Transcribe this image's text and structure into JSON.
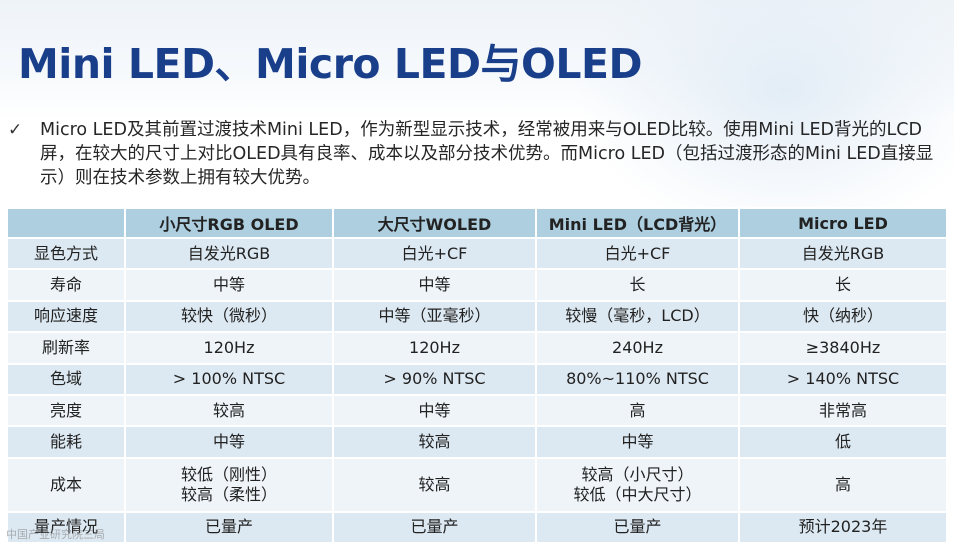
{
  "slide": {
    "title": "Mini LED、Micro LED与OLED",
    "bullet_mark": "✓",
    "bullet_text": "Micro LED及其前置过渡技术Mini LED，作为新型显示技术，经常被用来与OLED比较。使用Mini LED背光的LCD屏，在较大的尺寸上对比OLED具有良率、成本以及部分技术优势。而Micro LED（包括过渡形态的Mini LED直接显示）则在技术参数上拥有较大优势。"
  },
  "table": {
    "headers": [
      "",
      "小尺寸RGB OLED",
      "大尺寸WOLED",
      "Mini LED（LCD背光）",
      "Micro LED"
    ],
    "rows": [
      {
        "label": "显色方式",
        "cells": [
          [
            "自发光RGB"
          ],
          [
            "白光+CF"
          ],
          [
            "白光+CF"
          ],
          [
            "自发光RGB"
          ]
        ]
      },
      {
        "label": "寿命",
        "cells": [
          [
            "中等"
          ],
          [
            "中等"
          ],
          [
            "长"
          ],
          [
            "长"
          ]
        ]
      },
      {
        "label": "响应速度",
        "cells": [
          [
            "较快（微秒）"
          ],
          [
            "中等（亚毫秒）"
          ],
          [
            "较慢（毫秒，LCD）"
          ],
          [
            "快（纳秒）"
          ]
        ]
      },
      {
        "label": "刷新率",
        "cells": [
          [
            "120Hz"
          ],
          [
            "120Hz"
          ],
          [
            "240Hz"
          ],
          [
            "≥3840Hz"
          ]
        ]
      },
      {
        "label": "色域",
        "cells": [
          [
            "> 100% NTSC"
          ],
          [
            "> 90% NTSC"
          ],
          [
            "80%~110% NTSC"
          ],
          [
            "> 140% NTSC"
          ]
        ]
      },
      {
        "label": "亮度",
        "cells": [
          [
            "较高"
          ],
          [
            "中等"
          ],
          [
            "高"
          ],
          [
            "非常高"
          ]
        ]
      },
      {
        "label": "能耗",
        "cells": [
          [
            "中等"
          ],
          [
            "较高"
          ],
          [
            "中等"
          ],
          [
            "低"
          ]
        ]
      },
      {
        "label": "成本",
        "cells": [
          [
            "较低（刚性）",
            "较高（柔性）"
          ],
          [
            "较高"
          ],
          [
            "较高（小尺寸）",
            "较低（中大尺寸）"
          ],
          [
            "高"
          ]
        ]
      },
      {
        "label": "量产情况",
        "cells": [
          [
            "已量产"
          ],
          [
            "已量产"
          ],
          [
            "已量产"
          ],
          [
            "预计2023年"
          ]
        ]
      }
    ]
  },
  "watermark": "中国产业研究院三局"
}
